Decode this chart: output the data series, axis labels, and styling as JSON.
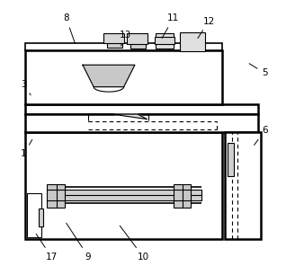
{
  "bg_color": "#ffffff",
  "line_color": "#000000",
  "figsize": [
    3.18,
    3.06
  ],
  "dpi": 100,
  "labels": {
    "1": [
      0.065,
      0.44,
      0.1,
      0.5
    ],
    "3": [
      0.065,
      0.695,
      0.09,
      0.655
    ],
    "5": [
      0.945,
      0.735,
      0.88,
      0.775
    ],
    "6": [
      0.945,
      0.525,
      0.9,
      0.465
    ],
    "8": [
      0.22,
      0.935,
      0.255,
      0.835
    ],
    "9": [
      0.3,
      0.065,
      0.215,
      0.195
    ],
    "10": [
      0.5,
      0.065,
      0.41,
      0.185
    ],
    "11": [
      0.61,
      0.935,
      0.565,
      0.855
    ],
    "12": [
      0.74,
      0.925,
      0.695,
      0.855
    ],
    "13": [
      0.435,
      0.875,
      0.42,
      0.835
    ],
    "17": [
      0.165,
      0.065,
      0.105,
      0.155
    ]
  }
}
